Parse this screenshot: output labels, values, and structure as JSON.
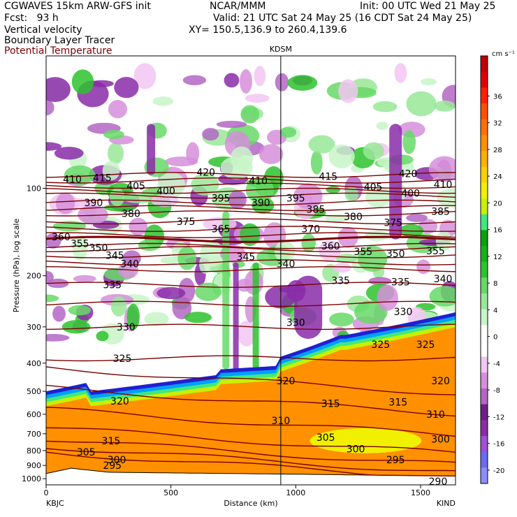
{
  "header": {
    "line1_left": "CGWAVES 15km ARW-GFS init",
    "line1_center": "NCAR/MMM",
    "line1_right": "Init: 00 UTC Wed 21 May 25",
    "line2_left": "Fcst:   93 h",
    "line2_right": "Valid: 21 UTC Sat 24 May 25 (16 CDT Sat 24 May 25)",
    "line3_left": "Vertical velocity",
    "line3_right": "XY= 150.5,136.9 to 260.4,139.6",
    "line4_left": "Boundary Layer Tracer",
    "line5_left": "Potential Temperature"
  },
  "colors": {
    "isentrope": "#7a0000",
    "terrain": "#ffffff",
    "marker": "#000000"
  },
  "chart_data": {
    "type": "heatmap",
    "title": "",
    "xlabel": "Distance (km)",
    "ylabel": "Pressure (hPa), log scale",
    "xlim": [
      0,
      1640
    ],
    "ylim": [
      1050,
      35
    ],
    "y_scale": "log",
    "x_ticks": [
      0,
      500,
      1000,
      1500
    ],
    "y_ticks": [
      100,
      200,
      300,
      400,
      500,
      600,
      700,
      800,
      900,
      1000
    ],
    "start_station": "KBJC",
    "end_station": "KIND",
    "marker_station": "KDSM",
    "marker_x": 940,
    "colorbar": {
      "unit": "cm s⁻¹",
      "ticks": [
        -20,
        -16,
        -12,
        -8,
        -4,
        0,
        4,
        8,
        12,
        16,
        20,
        24,
        28,
        32,
        36
      ],
      "colors": [
        "#8c8cff",
        "#6b6bf0",
        "#a050d8",
        "#8a2ba8",
        "#6e1d8a",
        "#b466c4",
        "#d68fdc",
        "#f2c6f2",
        "#ffffff",
        "#ffffff",
        "#c8f5c8",
        "#98e898",
        "#66d966",
        "#2ec22e",
        "#18b018",
        "#0aa00a",
        "#40e880",
        "#c8f000",
        "#f0f000",
        "#ffd000",
        "#ffb000",
        "#ff9000",
        "#ff7000",
        "#ff5000",
        "#ff2000",
        "#e00000",
        "#c00000"
      ]
    },
    "isentropes": [
      {
        "label": "295",
        "x": 265,
        "p": 900
      },
      {
        "label": "300",
        "x": 283,
        "p": 860
      },
      {
        "label": "305",
        "x": 160,
        "p": 810
      },
      {
        "label": "315",
        "x": 260,
        "p": 740
      },
      {
        "label": "320",
        "x": 295,
        "p": 540
      },
      {
        "label": "325",
        "x": 305,
        "p": 385
      },
      {
        "label": "330",
        "x": 320,
        "p": 300
      },
      {
        "label": "335",
        "x": 265,
        "p": 215
      },
      {
        "label": "340",
        "x": 335,
        "p": 182
      },
      {
        "label": "345",
        "x": 275,
        "p": 170
      },
      {
        "label": "350",
        "x": 210,
        "p": 160
      },
      {
        "label": "355",
        "x": 135,
        "p": 155
      },
      {
        "label": "360",
        "x": 60,
        "p": 147
      },
      {
        "label": "365",
        "x": 700,
        "p": 138
      },
      {
        "label": "370",
        "x": 1060,
        "p": 138
      },
      {
        "label": "375",
        "x": 560,
        "p": 130
      },
      {
        "label": "380",
        "x": 340,
        "p": 122
      },
      {
        "label": "385",
        "x": 1080,
        "p": 118
      },
      {
        "label": "390",
        "x": 190,
        "p": 112
      },
      {
        "label": "395",
        "x": 700,
        "p": 108
      },
      {
        "label": "400",
        "x": 480,
        "p": 102
      },
      {
        "label": "405",
        "x": 360,
        "p": 98
      },
      {
        "label": "410",
        "x": 105,
        "p": 93
      },
      {
        "label": "415",
        "x": 225,
        "p": 92
      },
      {
        "label": "420",
        "x": 640,
        "p": 88
      }
    ],
    "extra_isentrope_labels": [
      {
        "label": "360",
        "x": 1140,
        "p": 158
      },
      {
        "label": "355",
        "x": 1270,
        "p": 165
      },
      {
        "label": "350",
        "x": 1400,
        "p": 168
      },
      {
        "label": "355",
        "x": 1560,
        "p": 164
      },
      {
        "label": "345",
        "x": 800,
        "p": 172
      },
      {
        "label": "340",
        "x": 960,
        "p": 182
      },
      {
        "label": "335",
        "x": 1180,
        "p": 208
      },
      {
        "label": "335",
        "x": 1420,
        "p": 210
      },
      {
        "label": "340",
        "x": 1590,
        "p": 205
      },
      {
        "label": "330",
        "x": 1000,
        "p": 290
      },
      {
        "label": "330",
        "x": 1430,
        "p": 266
      },
      {
        "label": "325",
        "x": 1340,
        "p": 345
      },
      {
        "label": "325",
        "x": 1520,
        "p": 345
      },
      {
        "label": "320",
        "x": 960,
        "p": 460
      },
      {
        "label": "320",
        "x": 1580,
        "p": 460
      },
      {
        "label": "315",
        "x": 1140,
        "p": 550
      },
      {
        "label": "315",
        "x": 1410,
        "p": 545
      },
      {
        "label": "310",
        "x": 1560,
        "p": 600
      },
      {
        "label": "310",
        "x": 940,
        "p": 630
      },
      {
        "label": "305",
        "x": 1120,
        "p": 720
      },
      {
        "label": "300",
        "x": 1240,
        "p": 790
      },
      {
        "label": "300",
        "x": 1580,
        "p": 730
      },
      {
        "label": "295",
        "x": 1400,
        "p": 860
      },
      {
        "label": "290",
        "x": 1570,
        "p": 1020
      },
      {
        "label": "375",
        "x": 1390,
        "p": 131
      },
      {
        "label": "380",
        "x": 1230,
        "p": 125
      },
      {
        "label": "385",
        "x": 1580,
        "p": 120
      },
      {
        "label": "390",
        "x": 860,
        "p": 112
      },
      {
        "label": "395",
        "x": 1000,
        "p": 108
      },
      {
        "label": "400",
        "x": 1460,
        "p": 104
      },
      {
        "label": "405",
        "x": 1310,
        "p": 99
      },
      {
        "label": "410",
        "x": 850,
        "p": 94
      },
      {
        "label": "410",
        "x": 1590,
        "p": 97
      },
      {
        "label": "415",
        "x": 1130,
        "p": 91
      },
      {
        "label": "420",
        "x": 1450,
        "p": 89
      }
    ]
  }
}
